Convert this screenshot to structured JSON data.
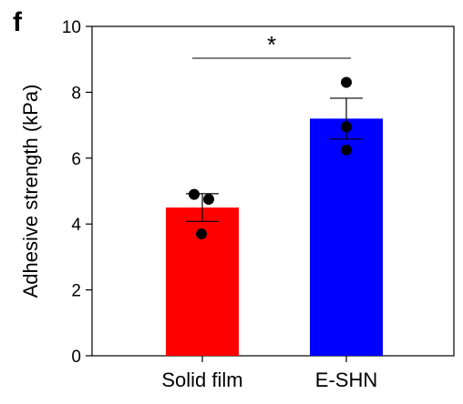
{
  "panel_label": "f",
  "chart_data": {
    "type": "bar",
    "categories": [
      "Solid film",
      "E-SHN"
    ],
    "values": [
      4.5,
      7.2
    ],
    "errors": [
      0.42,
      0.62
    ],
    "points": [
      [
        4.9,
        4.75,
        3.7
      ],
      [
        8.3,
        6.95,
        6.25
      ]
    ],
    "colors": [
      "#ff0000",
      "#0000ff"
    ],
    "xlabel": "",
    "ylabel": "Adhesive strength (kPa)",
    "ylim": [
      0,
      10
    ],
    "yticks": [
      0,
      2,
      4,
      6,
      8,
      10
    ],
    "significance": "*",
    "grid": false
  }
}
